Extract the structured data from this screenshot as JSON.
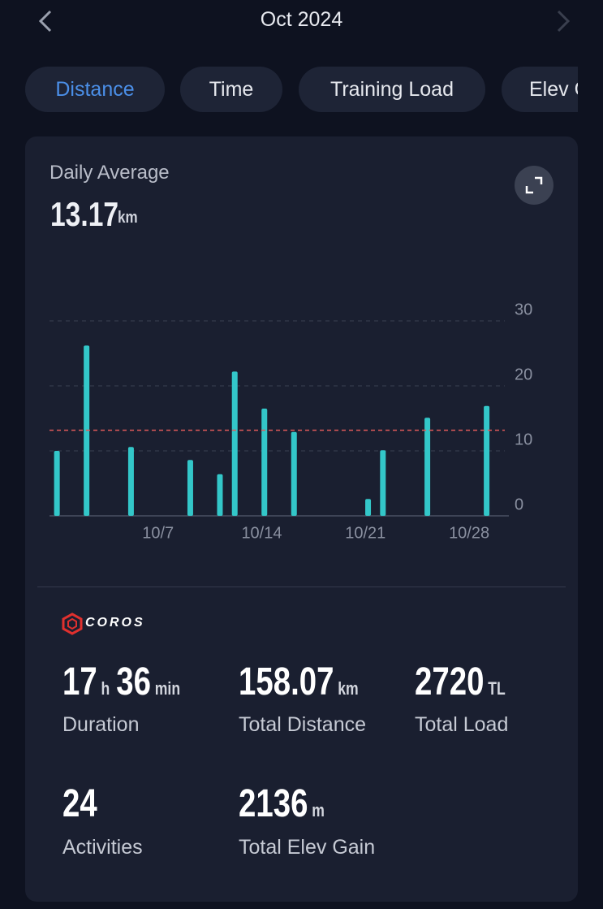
{
  "header": {
    "title": "Oct 2024"
  },
  "tabs": [
    "Distance",
    "Time",
    "Training Load",
    "Elev Gain"
  ],
  "chart_data": {
    "type": "bar",
    "title": "Daily Average",
    "average": 13.17,
    "average_unit": "km",
    "categories": [
      null,
      null,
      null,
      null,
      null,
      null,
      "10/7",
      null,
      null,
      null,
      null,
      null,
      null,
      "10/14",
      null,
      null,
      null,
      null,
      null,
      null,
      "10/21",
      null,
      null,
      null,
      null,
      null,
      null,
      "10/28",
      null,
      null,
      null
    ],
    "values": [
      10,
      0,
      26.2,
      0,
      0,
      10.6,
      0,
      0,
      0,
      8.6,
      0,
      6.4,
      22.2,
      0,
      16.5,
      0,
      12.9,
      0,
      0,
      0,
      0,
      2.6,
      10.1,
      0,
      0,
      15.1,
      0,
      0,
      0,
      16.9,
      0
    ],
    "color": "#33c7c9",
    "average_color": "#e05a5a",
    "ylim": [
      0,
      30
    ],
    "yticks": [
      0,
      10,
      20,
      30
    ],
    "grid": true
  },
  "brand": "COROS",
  "stats": [
    {
      "label": "Duration",
      "parts": [
        {
          "value": 17,
          "unit": "h"
        },
        {
          "value": 36,
          "unit": "min"
        }
      ]
    },
    {
      "label": "Total Distance",
      "parts": [
        {
          "value": 158.07,
          "unit": "km"
        }
      ]
    },
    {
      "label": "Total Load",
      "parts": [
        {
          "value": 2720,
          "unit": "TL"
        }
      ]
    },
    {
      "label": "Activities",
      "parts": [
        {
          "value": 24
        }
      ]
    },
    {
      "label": "Total Elev Gain",
      "parts": [
        {
          "value": 2136,
          "unit": "m"
        }
      ]
    }
  ]
}
